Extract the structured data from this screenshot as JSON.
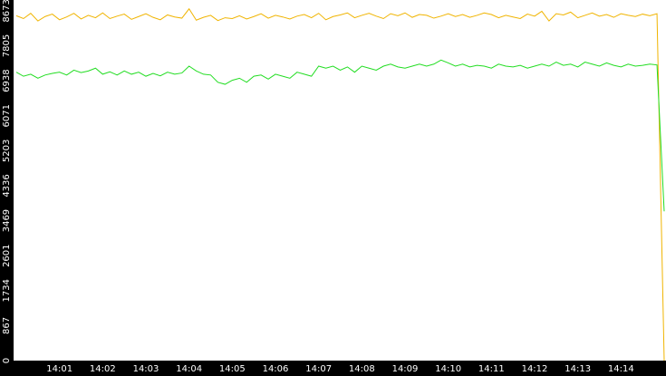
{
  "chart_data": {
    "type": "line",
    "categories": [
      null,
      null,
      null,
      null,
      null,
      null,
      "14:01",
      null,
      null,
      null,
      null,
      null,
      "14:02",
      null,
      null,
      null,
      null,
      null,
      "14:03",
      null,
      null,
      null,
      null,
      null,
      "14:04",
      null,
      null,
      null,
      null,
      null,
      "14:05",
      null,
      null,
      null,
      null,
      null,
      "14:06",
      null,
      null,
      null,
      null,
      null,
      "14:07",
      null,
      null,
      null,
      null,
      null,
      "14:08",
      null,
      null,
      null,
      null,
      null,
      "14:09",
      null,
      null,
      null,
      null,
      null,
      "14:10",
      null,
      null,
      null,
      null,
      null,
      "14:11",
      null,
      null,
      null,
      null,
      null,
      "14:12",
      null,
      null,
      null,
      null,
      null,
      "14:13",
      null,
      null,
      null,
      null,
      null,
      "14:14",
      null,
      null,
      null,
      null,
      null,
      null
    ],
    "series": [
      {
        "color": "#f0b400",
        "values": [
          8550,
          8480,
          8610,
          8420,
          8530,
          8590,
          8450,
          8520,
          8610,
          8470,
          8560,
          8500,
          8620,
          8480,
          8540,
          8590,
          8460,
          8530,
          8600,
          8510,
          8450,
          8570,
          8520,
          8490,
          8720,
          8440,
          8510,
          8560,
          8430,
          8500,
          8480,
          8550,
          8470,
          8530,
          8600,
          8490,
          8560,
          8520,
          8470,
          8540,
          8580,
          8500,
          8610,
          8450,
          8530,
          8570,
          8620,
          8500,
          8560,
          8610,
          8540,
          8480,
          8600,
          8550,
          8620,
          8510,
          8580,
          8560,
          8490,
          8540,
          8600,
          8530,
          8580,
          8510,
          8560,
          8620,
          8580,
          8500,
          8560,
          8520,
          8480,
          8590,
          8540,
          8660,
          8420,
          8600,
          8570,
          8640,
          8500,
          8560,
          8620,
          8540,
          8580,
          8510,
          8600,
          8560,
          8530,
          8590,
          8550,
          8600,
          0
        ]
      },
      {
        "color": "#22dd22",
        "values": [
          7150,
          7050,
          7100,
          7000,
          7080,
          7120,
          7150,
          7080,
          7200,
          7140,
          7180,
          7250,
          7100,
          7160,
          7080,
          7180,
          7100,
          7150,
          7050,
          7120,
          7060,
          7150,
          7100,
          7130,
          7300,
          7180,
          7100,
          7080,
          6900,
          6850,
          6950,
          7000,
          6900,
          7050,
          7080,
          6980,
          7100,
          7050,
          7000,
          7150,
          7100,
          7050,
          7300,
          7250,
          7300,
          7200,
          7280,
          7150,
          7300,
          7250,
          7200,
          7300,
          7350,
          7280,
          7250,
          7300,
          7350,
          7300,
          7350,
          7450,
          7380,
          7300,
          7350,
          7280,
          7320,
          7300,
          7250,
          7350,
          7300,
          7280,
          7320,
          7250,
          7300,
          7350,
          7300,
          7400,
          7320,
          7350,
          7280,
          7400,
          7350,
          7300,
          7380,
          7320,
          7280,
          7350,
          7300,
          7320,
          7350,
          7330,
          3700
        ]
      }
    ],
    "ylim": [
      0,
      8940
    ],
    "yticks": [
      0,
      867,
      1734,
      2601,
      3469,
      4336,
      5203,
      6071,
      6938,
      7805,
      8673
    ],
    "grid": false
  }
}
